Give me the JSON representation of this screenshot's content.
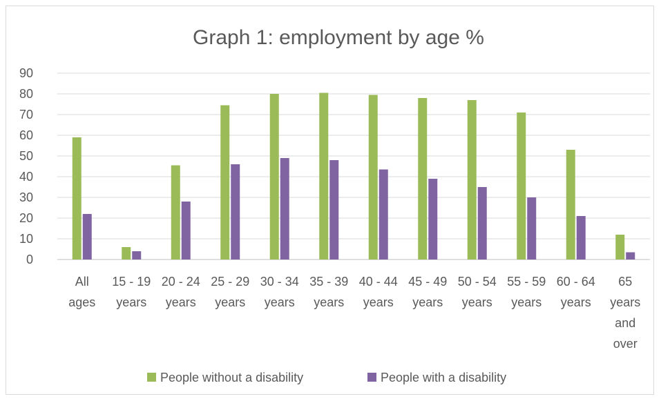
{
  "chart_data": {
    "type": "bar",
    "title": "Graph 1: employment by age %",
    "xlabel": "",
    "ylabel": "",
    "ylim": [
      0,
      90
    ],
    "yticks": [
      0,
      10,
      20,
      30,
      40,
      50,
      60,
      70,
      80,
      90
    ],
    "grid": true,
    "legend_position": "bottom",
    "categories": [
      [
        "All",
        "ages"
      ],
      [
        "15 - 19",
        "years"
      ],
      [
        "20 - 24",
        "years"
      ],
      [
        "25 - 29",
        "years"
      ],
      [
        "30 - 34",
        "years"
      ],
      [
        "35 - 39",
        "years"
      ],
      [
        "40 - 44",
        "years"
      ],
      [
        "45 - 49",
        "years"
      ],
      [
        "50 - 54",
        "years"
      ],
      [
        "55 - 59",
        "years"
      ],
      [
        "60 - 64",
        "years"
      ],
      [
        "65",
        "years",
        "and",
        "over"
      ]
    ],
    "series": [
      {
        "name": "People without a disability",
        "color": "#9bbb59",
        "values": [
          59,
          6,
          45.5,
          74.5,
          80,
          80.5,
          79.5,
          78,
          77,
          71,
          53,
          12
        ]
      },
      {
        "name": "People with a disability",
        "color": "#8064a2",
        "values": [
          22,
          4,
          28,
          46,
          49,
          48,
          43.5,
          39,
          35,
          30,
          21,
          3.5
        ]
      }
    ]
  }
}
